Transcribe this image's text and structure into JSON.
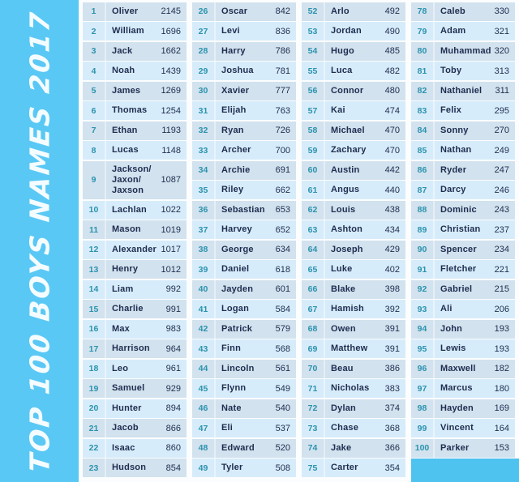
{
  "colors": {
    "banner": "#5ac8f5",
    "footer": "#4ec3f0",
    "rank": "#2b93ae",
    "ink": "#1e2d4f",
    "row_shade_a": "#d2e2ee",
    "row_shade_b": "#d7ecfa"
  },
  "chart_data": {
    "type": "table",
    "title": "TOP 100 BOYS NAMES 2017",
    "columns": [
      "rank",
      "name",
      "count"
    ],
    "legend_position": "left-banner-rotated",
    "column_groups": [
      {
        "rows": [
          {
            "rank": 1,
            "name": "Oliver",
            "count": 2145
          },
          {
            "rank": 2,
            "name": "William",
            "count": 1696
          },
          {
            "rank": 3,
            "name": "Jack",
            "count": 1662
          },
          {
            "rank": 4,
            "name": "Noah",
            "count": 1439
          },
          {
            "rank": 5,
            "name": "James",
            "count": 1269
          },
          {
            "rank": 6,
            "name": "Thomas",
            "count": 1254
          },
          {
            "rank": 7,
            "name": "Ethan",
            "count": 1193
          },
          {
            "rank": 8,
            "name": "Lucas",
            "count": 1148
          },
          {
            "rank": 9,
            "name": "Jackson/ Jaxon/ Jaxson",
            "count": 1087
          },
          {
            "rank": 10,
            "name": "Lachlan",
            "count": 1022
          },
          {
            "rank": 11,
            "name": "Mason",
            "count": 1019
          },
          {
            "rank": 12,
            "name": "Alexander",
            "count": 1017
          },
          {
            "rank": 13,
            "name": "Henry",
            "count": 1012
          },
          {
            "rank": 14,
            "name": "Liam",
            "count": 992
          },
          {
            "rank": 15,
            "name": "Charlie",
            "count": 991
          },
          {
            "rank": 16,
            "name": "Max",
            "count": 983
          },
          {
            "rank": 17,
            "name": "Harrison",
            "count": 964
          },
          {
            "rank": 18,
            "name": "Leo",
            "count": 961
          },
          {
            "rank": 19,
            "name": "Samuel",
            "count": 929
          },
          {
            "rank": 20,
            "name": "Hunter",
            "count": 894
          },
          {
            "rank": 21,
            "name": "Jacob",
            "count": 866
          },
          {
            "rank": 22,
            "name": "Isaac",
            "count": 860
          },
          {
            "rank": 23,
            "name": "Hudson",
            "count": 854
          }
        ]
      },
      {
        "rows": [
          {
            "rank": 26,
            "name": "Oscar",
            "count": 842
          },
          {
            "rank": 27,
            "name": "Levi",
            "count": 836
          },
          {
            "rank": 28,
            "name": "Harry",
            "count": 786
          },
          {
            "rank": 29,
            "name": "Joshua",
            "count": 781
          },
          {
            "rank": 30,
            "name": "Xavier",
            "count": 777
          },
          {
            "rank": 31,
            "name": "Elijah",
            "count": 763
          },
          {
            "rank": 32,
            "name": "Ryan",
            "count": 726
          },
          {
            "rank": 33,
            "name": "Archer",
            "count": 700
          },
          {
            "rank": 34,
            "name": "Archie",
            "count": 691
          },
          {
            "rank": 35,
            "name": "Riley",
            "count": 662
          },
          {
            "rank": 36,
            "name": "Sebastian",
            "count": 653
          },
          {
            "rank": 37,
            "name": "Harvey",
            "count": 652
          },
          {
            "rank": 38,
            "name": "George",
            "count": 634
          },
          {
            "rank": 39,
            "name": "Daniel",
            "count": 618
          },
          {
            "rank": 40,
            "name": "Jayden",
            "count": 601
          },
          {
            "rank": 41,
            "name": "Logan",
            "count": 584
          },
          {
            "rank": 42,
            "name": "Patrick",
            "count": 579
          },
          {
            "rank": 43,
            "name": "Finn",
            "count": 568
          },
          {
            "rank": 44,
            "name": "Lincoln",
            "count": 561
          },
          {
            "rank": 45,
            "name": "Flynn",
            "count": 549
          },
          {
            "rank": 46,
            "name": "Nate",
            "count": 540
          },
          {
            "rank": 47,
            "name": "Eli",
            "count": 537
          },
          {
            "rank": 48,
            "name": "Edward",
            "count": 520
          },
          {
            "rank": 49,
            "name": "Tyler",
            "count": 508
          }
        ]
      },
      {
        "rows": [
          {
            "rank": 52,
            "name": "Arlo",
            "count": 492
          },
          {
            "rank": 53,
            "name": "Jordan",
            "count": 490
          },
          {
            "rank": 54,
            "name": "Hugo",
            "count": 485
          },
          {
            "rank": 55,
            "name": "Luca",
            "count": 482
          },
          {
            "rank": 56,
            "name": "Connor",
            "count": 480
          },
          {
            "rank": 57,
            "name": "Kai",
            "count": 474
          },
          {
            "rank": 58,
            "name": "Michael",
            "count": 470
          },
          {
            "rank": 59,
            "name": "Zachary",
            "count": 470
          },
          {
            "rank": 60,
            "name": "Austin",
            "count": 442
          },
          {
            "rank": 61,
            "name": "Angus",
            "count": 440
          },
          {
            "rank": 62,
            "name": "Louis",
            "count": 438
          },
          {
            "rank": 63,
            "name": "Ashton",
            "count": 434
          },
          {
            "rank": 64,
            "name": "Joseph",
            "count": 429
          },
          {
            "rank": 65,
            "name": "Luke",
            "count": 402
          },
          {
            "rank": 66,
            "name": "Blake",
            "count": 398
          },
          {
            "rank": 67,
            "name": "Hamish",
            "count": 392
          },
          {
            "rank": 68,
            "name": "Owen",
            "count": 391
          },
          {
            "rank": 69,
            "name": "Matthew",
            "count": 391
          },
          {
            "rank": 70,
            "name": "Beau",
            "count": 386
          },
          {
            "rank": 71,
            "name": "Nicholas",
            "count": 383
          },
          {
            "rank": 72,
            "name": "Dylan",
            "count": 374
          },
          {
            "rank": 73,
            "name": "Chase",
            "count": 368
          },
          {
            "rank": 74,
            "name": "Jake",
            "count": 366
          },
          {
            "rank": 75,
            "name": "Carter",
            "count": 354
          }
        ]
      },
      {
        "rows": [
          {
            "rank": 78,
            "name": "Caleb",
            "count": 330
          },
          {
            "rank": 79,
            "name": "Adam",
            "count": 321
          },
          {
            "rank": 80,
            "name": "Muhammad",
            "count": 320
          },
          {
            "rank": 81,
            "name": "Toby",
            "count": 313
          },
          {
            "rank": 82,
            "name": "Nathaniel",
            "count": 311
          },
          {
            "rank": 83,
            "name": "Felix",
            "count": 295
          },
          {
            "rank": 84,
            "name": "Sonny",
            "count": 270
          },
          {
            "rank": 85,
            "name": "Nathan",
            "count": 249
          },
          {
            "rank": 86,
            "name": "Ryder",
            "count": 247
          },
          {
            "rank": 87,
            "name": "Darcy",
            "count": 246
          },
          {
            "rank": 88,
            "name": "Dominic",
            "count": 243
          },
          {
            "rank": 89,
            "name": "Christian",
            "count": 237
          },
          {
            "rank": 90,
            "name": "Spencer",
            "count": 234
          },
          {
            "rank": 91,
            "name": "Fletcher",
            "count": 221
          },
          {
            "rank": 92,
            "name": "Gabriel",
            "count": 215
          },
          {
            "rank": 93,
            "name": "Ali",
            "count": 206
          },
          {
            "rank": 94,
            "name": "John",
            "count": 193
          },
          {
            "rank": 95,
            "name": "Lewis",
            "count": 193
          },
          {
            "rank": 96,
            "name": "Maxwell",
            "count": 182
          },
          {
            "rank": 97,
            "name": "Marcus",
            "count": 180
          },
          {
            "rank": 98,
            "name": "Hayden",
            "count": 169
          },
          {
            "rank": 99,
            "name": "Vincent",
            "count": 164
          },
          {
            "rank": 100,
            "name": "Parker",
            "count": 153
          }
        ]
      }
    ]
  }
}
